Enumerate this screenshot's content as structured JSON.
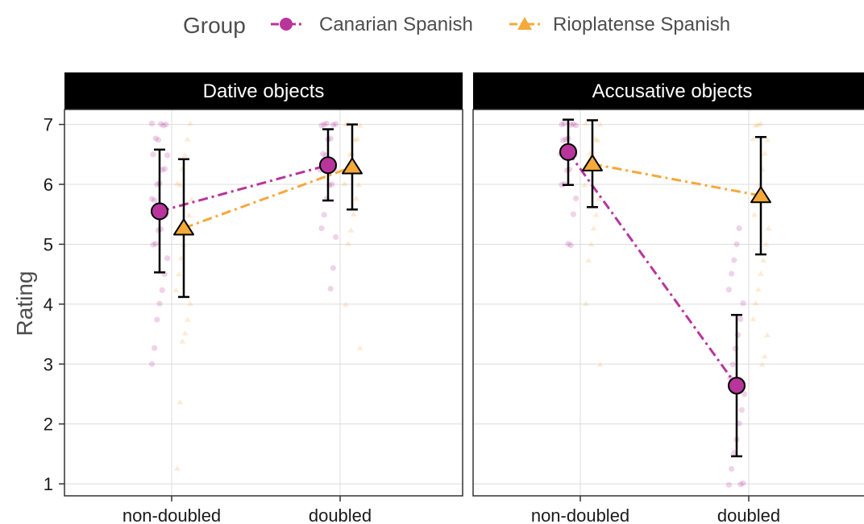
{
  "legend": {
    "title": "Group",
    "entries": [
      {
        "label": "Canarian Spanish",
        "color": "#b8359c",
        "shape": "circle",
        "line": "dash-dot"
      },
      {
        "label": "Rioplatense Spanish",
        "color": "#f5a93b",
        "shape": "triangle",
        "line": "dash-dot"
      }
    ]
  },
  "chart_data": {
    "type": "line",
    "ylabel": "Rating",
    "xlabel": "",
    "ylim": [
      0.8,
      7.25
    ],
    "yticks": [
      1,
      2,
      3,
      4,
      5,
      6,
      7
    ],
    "categories": [
      "non-doubled",
      "doubled"
    ],
    "grid": true,
    "legend_position": "top",
    "panels": [
      {
        "title": "Dative objects",
        "series": [
          {
            "name": "Canarian Spanish",
            "means": [
              5.55,
              6.32
            ],
            "error_low": [
              4.53,
              5.73
            ],
            "error_high": [
              6.58,
              6.92
            ],
            "raw_points": [
              [
                7,
                7,
                7,
                7,
                6.75,
                6.75,
                6.5,
                6.5,
                6.25,
                6.25,
                6,
                6,
                5.75,
                5.75,
                5.5,
                5.5,
                5.25,
                5.25,
                5,
                5,
                4.75,
                4.5,
                4.25,
                4,
                3.75,
                3.25,
                3
              ],
              [
                7,
                7,
                7,
                7,
                7,
                6.75,
                6.75,
                6.5,
                6.5,
                6.25,
                6.25,
                6,
                6,
                5.75,
                5.5,
                5.25,
                5.12,
                4.62,
                4.25
              ]
            ]
          },
          {
            "name": "Rioplatense Spanish",
            "means": [
              5.27,
              6.29
            ],
            "error_low": [
              4.12,
              5.58
            ],
            "error_high": [
              6.42,
              7.0
            ],
            "raw_points": [
              [
                7,
                6.75,
                6.5,
                6.25,
                6,
                6,
                5.75,
                5.5,
                5.25,
                5,
                4.75,
                4.5,
                4.25,
                4,
                3.75,
                3.5,
                3.38,
                2.38,
                1.25
              ],
              [
                7,
                7,
                7,
                6.75,
                6.75,
                6.5,
                6.5,
                6.25,
                6,
                6,
                5.75,
                5.5,
                5.25,
                5,
                4,
                3.25
              ]
            ]
          }
        ]
      },
      {
        "title": "Accusative objects",
        "series": [
          {
            "name": "Canarian Spanish",
            "means": [
              6.54,
              2.64
            ],
            "error_low": [
              5.99,
              1.46
            ],
            "error_high": [
              7.08,
              3.82
            ],
            "raw_points": [
              [
                7,
                7,
                7,
                7,
                7,
                6.75,
                6.75,
                6.75,
                6.5,
                6.5,
                6.5,
                6.25,
                6.25,
                6,
                6,
                5.75,
                5.5,
                5,
                5
              ],
              [
                5.25,
                5,
                4.75,
                4.5,
                4.25,
                4,
                3.75,
                3.5,
                3.25,
                3,
                2.75,
                2.5,
                2.25,
                2,
                1.75,
                1.5,
                1.25,
                1,
                1,
                1
              ]
            ]
          },
          {
            "name": "Rioplatense Spanish",
            "means": [
              6.34,
              5.81
            ],
            "error_low": [
              5.62,
              4.83
            ],
            "error_high": [
              7.07,
              6.79
            ],
            "raw_points": [
              [
                7,
                7,
                6.75,
                6.75,
                6.5,
                6.5,
                6.25,
                6,
                5.75,
                5.5,
                5.25,
                5,
                4.75,
                4,
                3
              ],
              [
                7,
                7,
                7,
                6.75,
                6.75,
                6.5,
                6.25,
                6,
                5.75,
                5.5,
                5.25,
                5,
                4.75,
                4.5,
                4.25,
                4,
                3.75,
                3.5,
                3.12,
                3
              ]
            ]
          }
        ]
      }
    ]
  }
}
